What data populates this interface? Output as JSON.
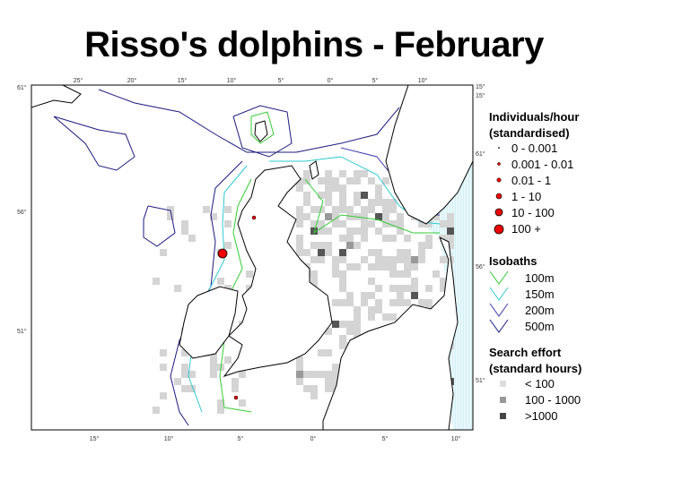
{
  "title": "Risso's dolphins - February",
  "top_labels": [
    "25°",
    "20°",
    "15°",
    "10°",
    "5°",
    "0°",
    "5°",
    "10°"
  ],
  "bottom_labels": [
    "15°",
    "10°",
    "5°",
    "0°",
    "5°",
    "10°"
  ],
  "left_labels": [
    "61°",
    "56°",
    "51°"
  ],
  "right_labels": [
    "15°",
    "15°",
    "61°",
    "56°",
    "51°"
  ],
  "legend": {
    "sightings": {
      "title_lines": [
        "Individuals/hour",
        "(standardised)"
      ],
      "items": [
        "0 - 0.001",
        "0.001 - 0.01",
        "0.01 - 1",
        "1 - 10",
        "10 - 100",
        "100 +"
      ]
    },
    "isobaths": {
      "title": "Isobaths",
      "items": [
        "100m",
        "150m",
        "200m",
        "500m"
      ]
    },
    "effort": {
      "title_lines": [
        "Search effort",
        "(standard hours)"
      ],
      "items": [
        "< 100",
        "100 - 1000",
        ">1000"
      ]
    }
  }
}
